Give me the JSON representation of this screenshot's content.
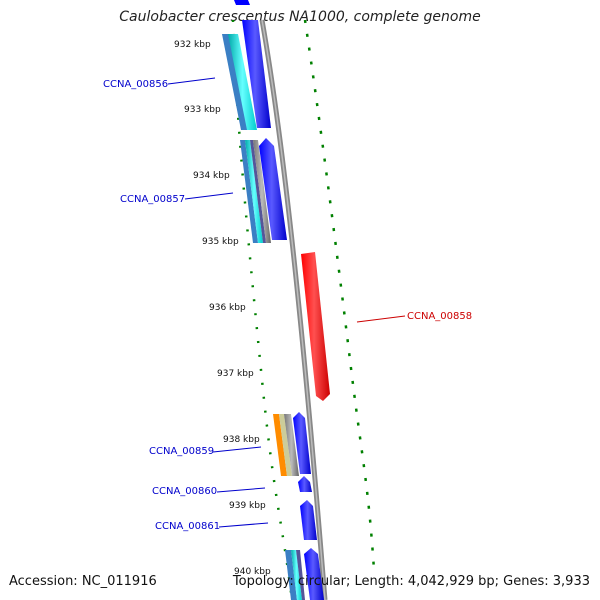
{
  "title": "Caulobacter crescentus NA1000, complete genome",
  "accession": "Accession: NC_011916",
  "topology": "Topology: circular; Length: 4,042,929 bp; Genes: 3,933",
  "colors": {
    "forward_gene": "#0000ff",
    "highlight_gene": "#ff0000",
    "cds_cyan": "#00cccc",
    "gc_skew": "#008000",
    "backbone": "#888888"
  },
  "tick_labels": [
    "932 kbp",
    "933 kbp",
    "934 kbp",
    "935 kbp",
    "936 kbp",
    "937 kbp",
    "938 kbp",
    "939 kbp",
    "940 kbp"
  ],
  "gene_labels": [
    {
      "id": "CCNA_00856",
      "color": "#0000cc"
    },
    {
      "id": "CCNA_00857",
      "color": "#0000cc"
    },
    {
      "id": "CCNA_00858",
      "color": "#cc0000"
    },
    {
      "id": "CCNA_00859",
      "color": "#0000cc"
    },
    {
      "id": "CCNA_00860",
      "color": "#0000cc"
    },
    {
      "id": "CCNA_00861",
      "color": "#0000cc"
    }
  ]
}
